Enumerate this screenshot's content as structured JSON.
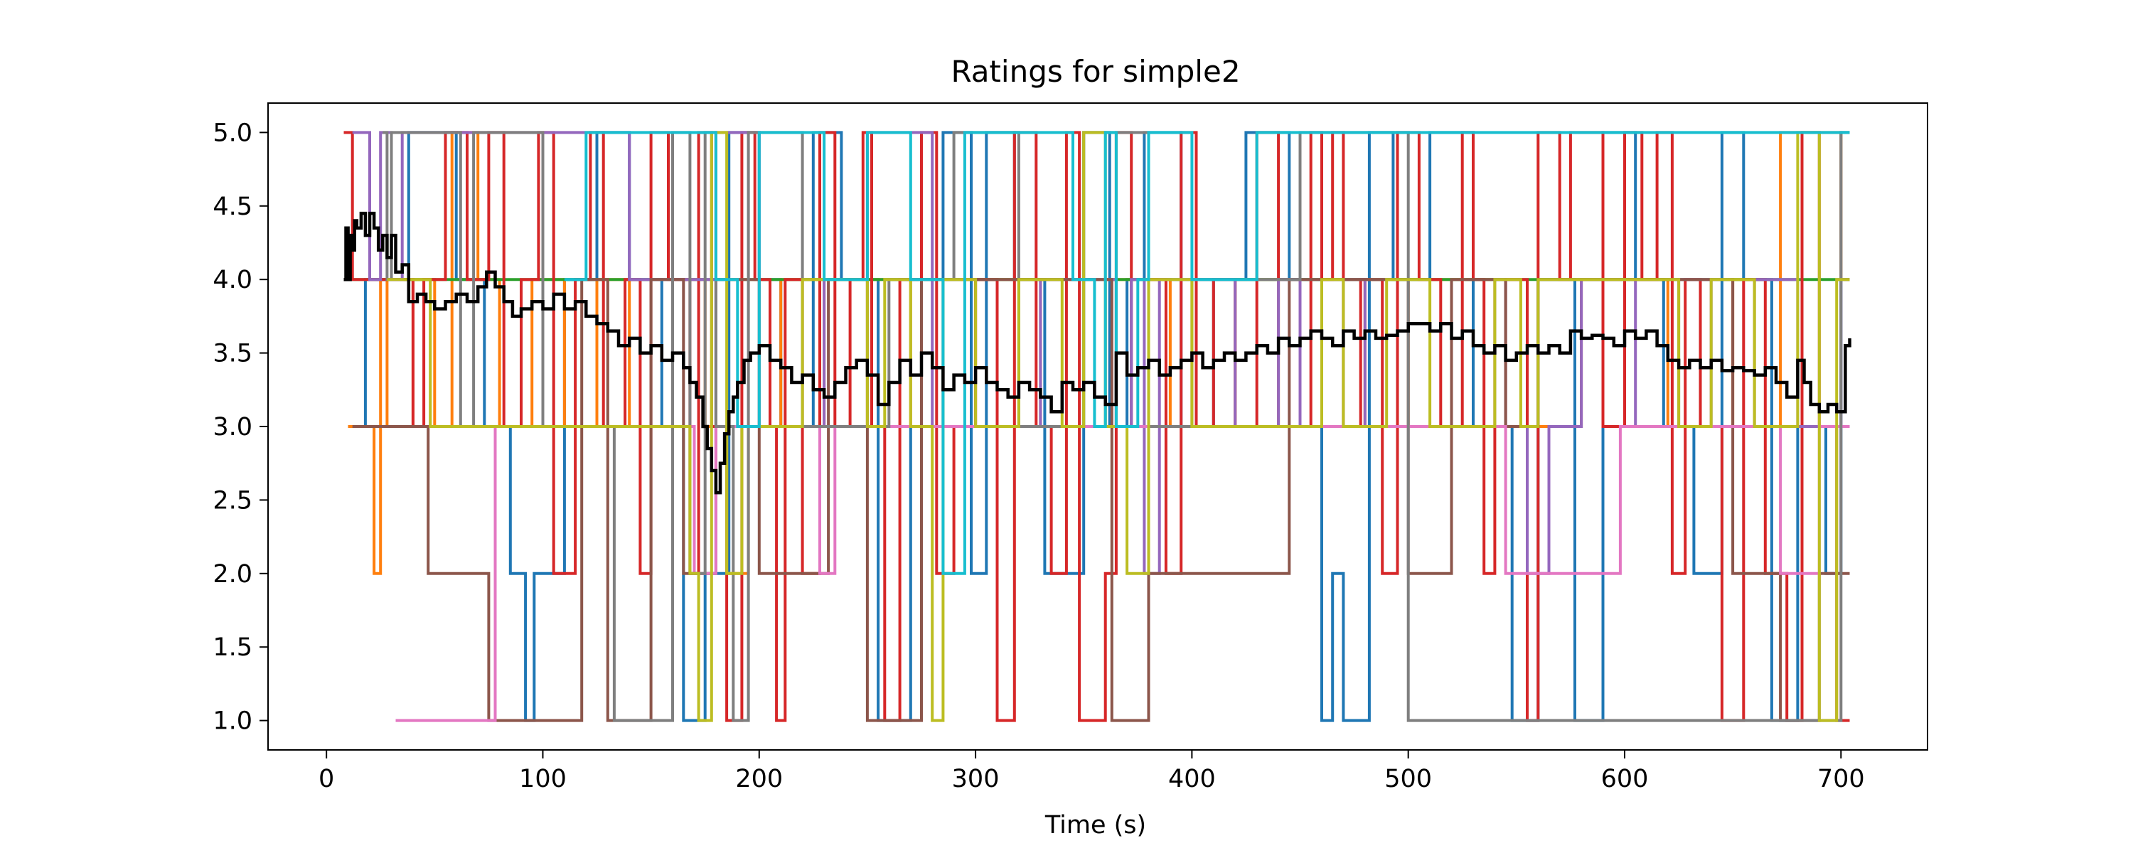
{
  "chart_data": {
    "type": "line",
    "title": "Ratings for simple2",
    "xlabel": "Time (s)",
    "ylabel": "",
    "xlim": [
      -27,
      740
    ],
    "ylim": [
      0.8,
      5.2
    ],
    "xticks": [
      0,
      100,
      200,
      300,
      400,
      500,
      600,
      700
    ],
    "yticks": [
      1.0,
      1.5,
      2.0,
      2.5,
      3.0,
      3.5,
      4.0,
      4.5,
      5.0
    ],
    "grid": false,
    "legend": "none",
    "step": true,
    "series": [
      {
        "color": "#1f77b4",
        "x": [
          10,
          18,
          38,
          60,
          73,
          85,
          92,
          96,
          110,
          125,
          140,
          155,
          165,
          175,
          186,
          200,
          210,
          225,
          238,
          255,
          270,
          285,
          298,
          305,
          318,
          332,
          350,
          362,
          370,
          378,
          395,
          410,
          425,
          445,
          460,
          465,
          470,
          482,
          493,
          510,
          530,
          548,
          560,
          577,
          590,
          605,
          618,
          632,
          645,
          655,
          668,
          680,
          693,
          700,
          704
        ],
        "y": [
          3,
          4,
          5,
          4,
          3,
          2,
          1,
          2,
          4,
          5,
          4,
          3,
          1,
          2,
          5,
          4,
          3,
          5,
          4,
          1,
          3,
          5,
          2,
          5,
          4,
          2,
          5,
          3,
          4,
          5,
          3,
          4,
          5,
          4,
          1,
          2,
          1,
          5,
          4,
          5,
          3,
          1,
          4,
          1,
          5,
          4,
          3,
          2,
          5,
          4,
          1,
          3,
          2,
          5,
          5
        ]
      },
      {
        "color": "#ff7f0e",
        "x": [
          10,
          22,
          25,
          28,
          40,
          50,
          58,
          70,
          80,
          95,
          110,
          125,
          140,
          160,
          175,
          185,
          195,
          210,
          230,
          250,
          270,
          300,
          330,
          360,
          390,
          420,
          440,
          460,
          480,
          500,
          540,
          580,
          620,
          650,
          660,
          672,
          700,
          704
        ],
        "y": [
          3,
          2,
          4,
          3,
          4,
          3,
          5,
          4,
          3,
          4,
          3,
          4,
          3,
          4,
          3,
          2,
          3,
          4,
          3,
          4,
          3,
          4,
          3,
          4,
          3,
          4,
          3,
          4,
          3,
          4,
          3,
          4,
          3,
          4,
          3,
          5,
          4,
          4
        ]
      },
      {
        "color": "#2ca02c",
        "x": [
          10,
          704
        ],
        "y": [
          4,
          4
        ]
      },
      {
        "color": "#d62728",
        "x": [
          8,
          12,
          40,
          45,
          55,
          65,
          75,
          82,
          90,
          98,
          105,
          115,
          122,
          128,
          138,
          145,
          150,
          158,
          168,
          172,
          178,
          185,
          192,
          198,
          205,
          208,
          212,
          220,
          228,
          235,
          242,
          248,
          252,
          258,
          265,
          275,
          282,
          290,
          300,
          310,
          318,
          328,
          335,
          342,
          348,
          360,
          365,
          372,
          380,
          388,
          395,
          402,
          410,
          420,
          430,
          440,
          450,
          455,
          460,
          465,
          470,
          478,
          488,
          495,
          505,
          515,
          525,
          530,
          535,
          540,
          545,
          555,
          560,
          570,
          575,
          590,
          600,
          608,
          615,
          622,
          628,
          635,
          645,
          655,
          665,
          675,
          682,
          690,
          698,
          704
        ],
        "y": [
          5,
          4,
          3,
          4,
          5,
          4,
          5,
          3,
          4,
          5,
          2,
          4,
          5,
          3,
          4,
          2,
          5,
          4,
          2,
          5,
          3,
          1,
          5,
          4,
          3,
          1,
          4,
          2,
          5,
          3,
          4,
          5,
          3,
          1,
          4,
          5,
          2,
          3,
          4,
          1,
          5,
          3,
          2,
          5,
          1,
          2,
          5,
          3,
          4,
          2,
          5,
          3,
          4,
          3,
          5,
          4,
          3,
          5,
          4,
          5,
          3,
          4,
          2,
          5,
          4,
          3,
          5,
          4,
          2,
          3,
          4,
          1,
          5,
          4,
          5,
          3,
          5,
          4,
          5,
          2,
          4,
          3,
          1,
          4,
          2,
          1,
          5,
          3,
          1,
          1
        ]
      },
      {
        "color": "#9467bd",
        "x": [
          12,
          20,
          25,
          30,
          35,
          140,
          180,
          200,
          230,
          250,
          280,
          330,
          365,
          372,
          378,
          385,
          420,
          440,
          450,
          470,
          480,
          540,
          545,
          555,
          565,
          580,
          605,
          625,
          640,
          660,
          680,
          700,
          704
        ],
        "y": [
          5,
          4,
          5,
          4,
          5,
          4,
          5,
          3,
          4,
          5,
          3,
          4,
          3,
          4,
          2,
          4,
          3,
          4,
          3,
          4,
          3,
          4,
          3,
          2,
          3,
          4,
          3,
          4,
          3,
          4,
          3,
          4,
          4
        ]
      },
      {
        "color": "#8c564b",
        "x": [
          12,
          30,
          47,
          62,
          75,
          90,
          105,
          118,
          130,
          150,
          165,
          180,
          200,
          232,
          250,
          275,
          300,
          330,
          363,
          380,
          400,
          420,
          440,
          445,
          480,
          500,
          520,
          545,
          560,
          580,
          600,
          620,
          650,
          672,
          690,
          704
        ],
        "y": [
          3,
          3,
          2,
          2,
          1,
          1,
          1,
          4,
          1,
          4,
          2,
          4,
          2,
          4,
          1,
          4,
          4,
          4,
          1,
          2,
          2,
          2,
          2,
          4,
          4,
          2,
          4,
          3,
          4,
          4,
          4,
          4,
          2,
          1,
          2,
          2
        ]
      },
      {
        "color": "#e377c2",
        "x": [
          32,
          45,
          60,
          75,
          78,
          100,
          120,
          160,
          170,
          180,
          228,
          235,
          300,
          380,
          430,
          440,
          540,
          545,
          580,
          598,
          640,
          660,
          672,
          690,
          704
        ],
        "y": [
          1,
          1,
          1,
          1,
          3,
          3,
          3,
          3,
          2,
          3,
          2,
          3,
          3,
          3,
          3,
          3,
          3,
          2,
          2,
          3,
          3,
          3,
          2,
          3,
          3
        ]
      },
      {
        "color": "#7f7f7f",
        "x": [
          26,
          28,
          30,
          62,
          68,
          100,
          133,
          160,
          168,
          175,
          180,
          188,
          195,
          200,
          220,
          260,
          290,
          320,
          350,
          380,
          400,
          450,
          500,
          520,
          530,
          590,
          600,
          650,
          680,
          700,
          704
        ],
        "y": [
          5,
          4,
          5,
          3,
          5,
          3,
          1,
          5,
          2,
          5,
          3,
          1,
          5,
          5,
          3,
          4,
          5,
          3,
          5,
          3,
          4,
          5,
          1,
          1,
          1,
          1,
          1,
          1,
          1,
          5,
          5
        ]
      },
      {
        "color": "#bcbd22",
        "x": [
          28,
          32,
          48,
          60,
          80,
          120,
          140,
          160,
          168,
          172,
          178,
          185,
          192,
          220,
          250,
          258,
          270,
          280,
          285,
          300,
          320,
          340,
          350,
          360,
          370,
          380,
          400,
          460,
          470,
          490,
          510,
          540,
          552,
          555,
          560,
          600,
          625,
          640,
          660,
          680,
          690,
          698,
          704
        ],
        "y": [
          4,
          4,
          3,
          3,
          3,
          3,
          3,
          3,
          2,
          1,
          5,
          2,
          3,
          4,
          3,
          4,
          3,
          1,
          4,
          3,
          4,
          3,
          5,
          3,
          2,
          4,
          3,
          4,
          3,
          4,
          3,
          4,
          3,
          3,
          4,
          4,
          3,
          4,
          3,
          5,
          1,
          4,
          4
        ]
      },
      {
        "color": "#17becf",
        "x": [
          110,
          120,
          180,
          190,
          200,
          230,
          250,
          270,
          285,
          295,
          320,
          345,
          355,
          360,
          365,
          375,
          380,
          400,
          430,
          450,
          500,
          550,
          600,
          650,
          704
        ],
        "y": [
          4,
          5,
          4,
          3,
          5,
          4,
          5,
          4,
          2,
          5,
          5,
          4,
          3,
          5,
          3,
          4,
          5,
          4,
          5,
          5,
          5,
          5,
          5,
          5,
          5
        ]
      },
      {
        "color": "#000000",
        "x": [
          8,
          9,
          10,
          11,
          12,
          13,
          14,
          16,
          18,
          20,
          22,
          24,
          26,
          28,
          30,
          32,
          35,
          38,
          42,
          46,
          50,
          55,
          60,
          65,
          70,
          74,
          78,
          82,
          86,
          90,
          95,
          100,
          105,
          110,
          115,
          120,
          125,
          130,
          135,
          140,
          145,
          150,
          155,
          160,
          165,
          168,
          171,
          174,
          176,
          178,
          180,
          182,
          184,
          186,
          188,
          190,
          193,
          196,
          200,
          205,
          210,
          215,
          220,
          225,
          230,
          235,
          240,
          245,
          250,
          255,
          260,
          265,
          270,
          275,
          280,
          285,
          290,
          295,
          300,
          305,
          310,
          315,
          320,
          325,
          330,
          335,
          340,
          345,
          350,
          355,
          360,
          365,
          370,
          375,
          380,
          385,
          390,
          395,
          400,
          405,
          410,
          415,
          420,
          425,
          430,
          435,
          440,
          445,
          450,
          455,
          460,
          465,
          470,
          475,
          480,
          485,
          490,
          495,
          500,
          505,
          510,
          515,
          520,
          525,
          530,
          535,
          540,
          545,
          550,
          555,
          560,
          565,
          570,
          575,
          580,
          585,
          590,
          595,
          600,
          605,
          610,
          615,
          620,
          625,
          630,
          635,
          640,
          645,
          650,
          655,
          660,
          665,
          670,
          675,
          680,
          683,
          686,
          690,
          694,
          698,
          702,
          704
        ],
        "y": [
          4.0,
          4.35,
          4.0,
          4.3,
          4.2,
          4.4,
          4.35,
          4.45,
          4.3,
          4.45,
          4.35,
          4.2,
          4.3,
          4.15,
          4.3,
          4.05,
          4.1,
          3.85,
          3.9,
          3.85,
          3.8,
          3.85,
          3.9,
          3.85,
          3.95,
          4.05,
          3.95,
          3.85,
          3.75,
          3.8,
          3.85,
          3.8,
          3.9,
          3.8,
          3.85,
          3.75,
          3.7,
          3.65,
          3.55,
          3.6,
          3.5,
          3.55,
          3.45,
          3.5,
          3.4,
          3.3,
          3.2,
          3.0,
          2.85,
          2.7,
          2.55,
          2.75,
          2.95,
          3.1,
          3.2,
          3.3,
          3.45,
          3.5,
          3.55,
          3.45,
          3.4,
          3.3,
          3.35,
          3.25,
          3.2,
          3.3,
          3.4,
          3.45,
          3.35,
          3.15,
          3.3,
          3.45,
          3.35,
          3.5,
          3.4,
          3.25,
          3.35,
          3.3,
          3.4,
          3.3,
          3.25,
          3.2,
          3.3,
          3.25,
          3.2,
          3.1,
          3.3,
          3.25,
          3.3,
          3.2,
          3.15,
          3.5,
          3.35,
          3.4,
          3.45,
          3.35,
          3.4,
          3.45,
          3.5,
          3.4,
          3.45,
          3.5,
          3.45,
          3.5,
          3.55,
          3.5,
          3.6,
          3.55,
          3.6,
          3.65,
          3.6,
          3.55,
          3.65,
          3.6,
          3.65,
          3.6,
          3.62,
          3.65,
          3.7,
          3.7,
          3.65,
          3.7,
          3.6,
          3.65,
          3.55,
          3.5,
          3.55,
          3.45,
          3.5,
          3.55,
          3.5,
          3.55,
          3.5,
          3.65,
          3.6,
          3.62,
          3.6,
          3.55,
          3.65,
          3.6,
          3.65,
          3.55,
          3.45,
          3.4,
          3.45,
          3.4,
          3.45,
          3.38,
          3.4,
          3.38,
          3.35,
          3.4,
          3.3,
          3.2,
          3.45,
          3.3,
          3.15,
          3.1,
          3.15,
          3.1,
          3.55,
          3.6
        ]
      }
    ]
  }
}
